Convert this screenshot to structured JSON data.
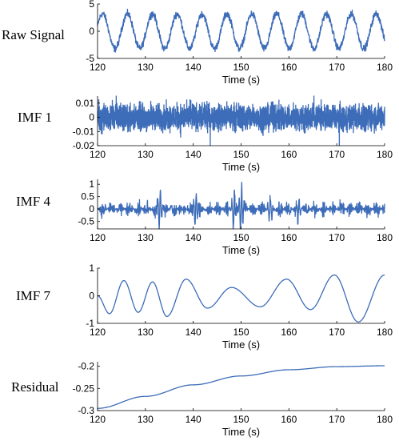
{
  "chart_data": [
    {
      "type": "line",
      "ylabel": "Raw Signal",
      "xlabel": "Time (s)",
      "xlim": [
        120,
        180
      ],
      "ylim": [
        -5,
        5
      ],
      "xticks": [
        "120",
        "130",
        "140",
        "150",
        "160",
        "170",
        "180"
      ],
      "yticks": [
        "5",
        "0",
        "-5"
      ],
      "series_color": "#3d6cb8",
      "signal": {
        "kind": "oscillation_noise",
        "amplitude": 3.2,
        "period": 5.2,
        "phase": 0.3,
        "noise": 0.9
      }
    },
    {
      "type": "line",
      "ylabel": "IMF 1",
      "xlabel": "Time (s)",
      "xlim": [
        120,
        180
      ],
      "ylim": [
        -0.02,
        0.015
      ],
      "xticks": [
        "120",
        "130",
        "140",
        "150",
        "160",
        "170",
        "180"
      ],
      "yticks": [
        "0.01",
        "0",
        "-0.01",
        "-0.02"
      ],
      "series_color": "#3d6cb8",
      "signal": {
        "kind": "dense_noise",
        "amplitude": 0.008
      }
    },
    {
      "type": "line",
      "ylabel": "IMF 4",
      "xlabel": "Time (s)",
      "xlim": [
        120,
        180
      ],
      "ylim": [
        -0.8,
        1.2
      ],
      "xticks": [
        "120",
        "130",
        "140",
        "150",
        "160",
        "170",
        "180"
      ],
      "yticks": [
        "1",
        "0.5",
        "0",
        "-0.5"
      ],
      "series_color": "#3d6cb8",
      "signal": {
        "kind": "bursty",
        "amplitude": 0.3,
        "bursts": [
          [
            133,
            0.85
          ],
          [
            140.5,
            0.7
          ],
          [
            148.5,
            0.9
          ],
          [
            150,
            1.05
          ],
          [
            156,
            0.6
          ],
          [
            162,
            0.5
          ]
        ]
      }
    },
    {
      "type": "line",
      "ylabel": "IMF 7",
      "xlabel": "Time (s)",
      "xlim": [
        120,
        180
      ],
      "ylim": [
        -1,
        1
      ],
      "xticks": [
        "120",
        "130",
        "140",
        "150",
        "160",
        "170",
        "180"
      ],
      "yticks": [
        "1",
        "0",
        "-1"
      ],
      "series_color": "#3d6cb8",
      "x": [
        120,
        122.5,
        125.5,
        128.5,
        131.5,
        134.5,
        138.5,
        143,
        148,
        154,
        159.5,
        164.5,
        169.5,
        174.5,
        180
      ],
      "y": [
        0.0,
        -0.65,
        0.55,
        -0.6,
        0.5,
        -0.75,
        0.6,
        -0.45,
        0.3,
        -0.4,
        0.6,
        -0.5,
        0.75,
        -0.95,
        0.75
      ]
    },
    {
      "type": "line",
      "ylabel": "Residual",
      "xlabel": "Time (s)",
      "xlim": [
        120,
        180
      ],
      "ylim": [
        -0.3,
        -0.19
      ],
      "xticks": [
        "120",
        "130",
        "140",
        "150",
        "160",
        "170",
        "180"
      ],
      "yticks": [
        "-0.2",
        "-0.25",
        "-0.3"
      ],
      "series_color": "#3d6cb8",
      "x": [
        120,
        130,
        140,
        150,
        160,
        170,
        180
      ],
      "y": [
        -0.295,
        -0.268,
        -0.242,
        -0.222,
        -0.208,
        -0.201,
        -0.199
      ]
    }
  ]
}
